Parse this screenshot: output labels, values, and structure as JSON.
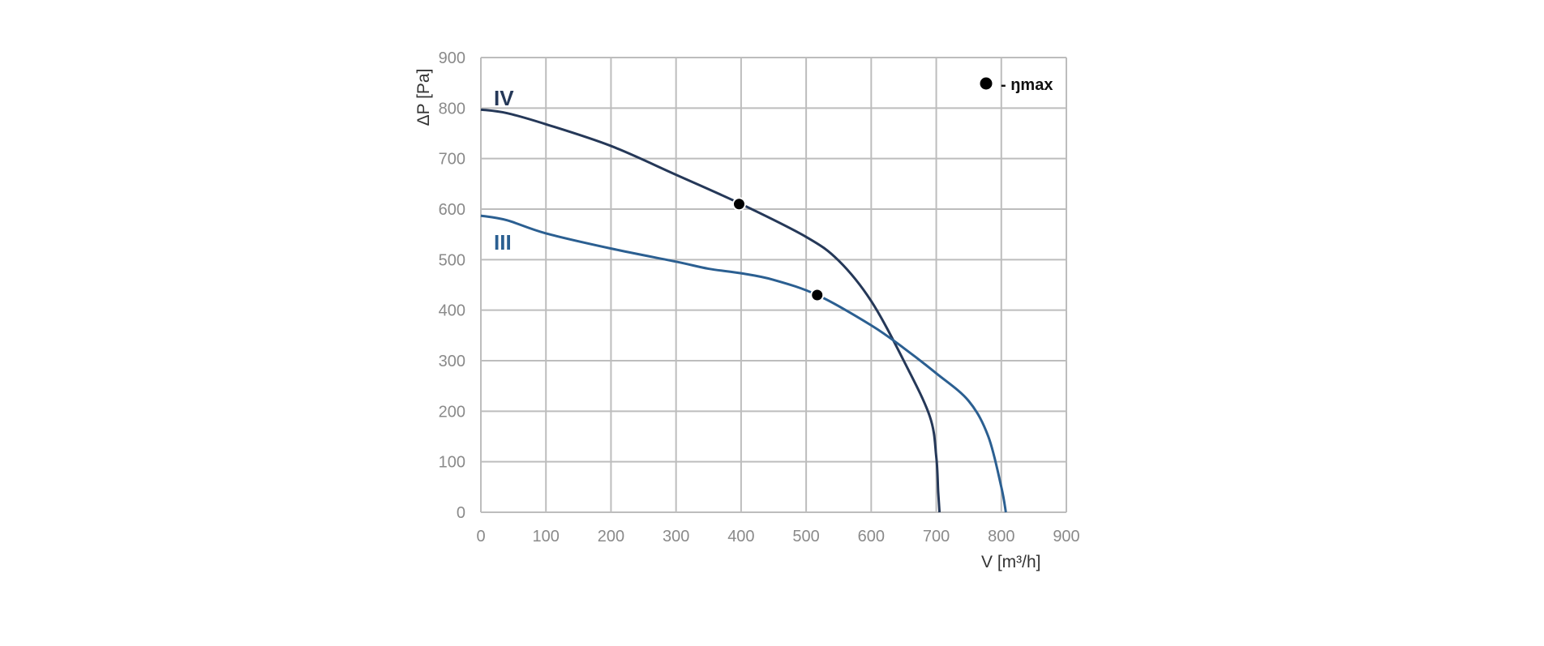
{
  "chart_data": {
    "type": "line",
    "title": "",
    "xlabel": "V [m³/h]",
    "ylabel": "ΔP [Pa]",
    "xlim": [
      0,
      900
    ],
    "ylim": [
      0,
      900
    ],
    "x_ticks": [
      "0",
      "100",
      "200",
      "300",
      "400",
      "500",
      "600",
      "700",
      "800",
      "900"
    ],
    "y_ticks": [
      "0",
      "100",
      "200",
      "300",
      "400",
      "500",
      "600",
      "700",
      "800",
      "900"
    ],
    "grid": true,
    "legend": {
      "position": "top-right",
      "marker_label": "- ŋmax"
    },
    "series": [
      {
        "name": "IV",
        "color": "#253858",
        "points": [
          [
            0,
            797
          ],
          [
            40,
            790
          ],
          [
            100,
            768
          ],
          [
            200,
            725
          ],
          [
            300,
            668
          ],
          [
            400,
            610
          ],
          [
            500,
            545
          ],
          [
            550,
            498
          ],
          [
            600,
            418
          ],
          [
            650,
            300
          ],
          [
            690,
            190
          ],
          [
            700,
            110
          ],
          [
            703,
            40
          ],
          [
            705,
            0
          ]
        ],
        "eta_max": [
          397,
          610
        ]
      },
      {
        "name": "III",
        "color": "#2b5f91",
        "points": [
          [
            0,
            587
          ],
          [
            40,
            578
          ],
          [
            100,
            552
          ],
          [
            200,
            522
          ],
          [
            300,
            496
          ],
          [
            350,
            482
          ],
          [
            400,
            473
          ],
          [
            450,
            460
          ],
          [
            517,
            430
          ],
          [
            600,
            370
          ],
          [
            650,
            325
          ],
          [
            700,
            275
          ],
          [
            750,
            220
          ],
          [
            780,
            150
          ],
          [
            800,
            50
          ],
          [
            807,
            0
          ]
        ],
        "eta_max": [
          517,
          430
        ]
      }
    ]
  }
}
